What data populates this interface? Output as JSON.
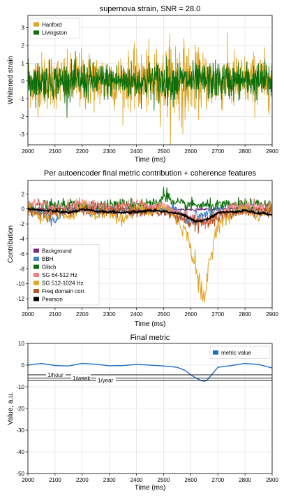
{
  "chart_data": [
    {
      "type": "line",
      "title": "supernova strain, SNR = 28.0",
      "xlabel": "Time (ms)",
      "ylabel": "Whitened strain",
      "xlim": [
        2000,
        2900
      ],
      "ylim": [
        -3.6,
        3.7
      ],
      "xticks": [
        2000,
        2100,
        2200,
        2300,
        2400,
        2500,
        2600,
        2700,
        2800,
        2900
      ],
      "yticks": [
        -3,
        -2,
        -1,
        0,
        1,
        2,
        3
      ],
      "grid": true,
      "legend_position": "top-left",
      "series": [
        {
          "name": "Hanford",
          "color": "#e0a526",
          "x": [
            2000,
            2050,
            2100,
            2150,
            2200,
            2250,
            2300,
            2350,
            2400,
            2450,
            2500,
            2520,
            2540,
            2560,
            2580,
            2600,
            2650,
            2700,
            2750,
            2800,
            2850,
            2900
          ],
          "amplitude": [
            1.6,
            1.8,
            1.7,
            1.6,
            1.9,
            1.7,
            1.8,
            1.6,
            1.8,
            1.9,
            2.0,
            2.4,
            3.3,
            2.8,
            2.3,
            2.0,
            1.8,
            1.7,
            1.9,
            1.6,
            1.8,
            1.6
          ]
        },
        {
          "name": "Livingston",
          "color": "#0b6e0b",
          "x": [
            2000,
            2100,
            2200,
            2300,
            2400,
            2500,
            2600,
            2700,
            2800,
            2900
          ],
          "amplitude": [
            1.2,
            1.1,
            1.2,
            1.1,
            1.2,
            1.3,
            1.1,
            1.2,
            1.1,
            1.2
          ]
        }
      ]
    },
    {
      "type": "line",
      "title": "Per autoencoder final metric contribution + coherence features",
      "xlabel": "Time (ms)",
      "ylabel": "Contribution",
      "xlim": [
        2000,
        2900
      ],
      "ylim": [
        -13.2,
        3.8
      ],
      "xticks": [
        2000,
        2100,
        2200,
        2300,
        2400,
        2500,
        2600,
        2700,
        2800,
        2900
      ],
      "yticks": [
        -12,
        -10,
        -8,
        -6,
        -4,
        -2,
        0,
        2
      ],
      "grid": true,
      "legend_position": "bottom-left",
      "series": [
        {
          "name": "Background",
          "color": "#7e2b7e",
          "x": [
            2000,
            2100,
            2200,
            2300,
            2400,
            2500,
            2600,
            2700,
            2800,
            2900
          ],
          "values": [
            0.1,
            0.0,
            0.1,
            0.0,
            0.1,
            0.0,
            -0.1,
            0.0,
            0.1,
            0.0
          ]
        },
        {
          "name": "BBH",
          "color": "#3f86c8",
          "x": [
            2000,
            2050,
            2100,
            2150,
            2200,
            2250,
            2300,
            2350,
            2400,
            2450,
            2500,
            2550,
            2600,
            2650,
            2700,
            2750,
            2800,
            2850,
            2900
          ],
          "values": [
            0.2,
            -0.5,
            -1.6,
            0.0,
            0.2,
            -0.6,
            0.1,
            -0.3,
            0.2,
            0.0,
            0.1,
            -0.4,
            -1.2,
            -0.8,
            0.0,
            -0.3,
            0.2,
            -0.6,
            0.0
          ]
        },
        {
          "name": "Glitch",
          "color": "#0b6e0b",
          "x": [
            2000,
            2100,
            2200,
            2300,
            2400,
            2480,
            2500,
            2510,
            2520,
            2530,
            2600,
            2700,
            2800,
            2900
          ],
          "values": [
            0.5,
            0.4,
            0.6,
            0.5,
            0.7,
            0.8,
            1.9,
            2.2,
            1.5,
            0.7,
            0.5,
            0.4,
            0.6,
            0.5
          ]
        },
        {
          "name": "SG 64-512 Hz",
          "color": "#f08080",
          "x": [
            2000,
            2100,
            2200,
            2300,
            2400,
            2500,
            2550,
            2600,
            2650,
            2700,
            2750,
            2800,
            2850,
            2900
          ],
          "values": [
            0.8,
            0.3,
            0.7,
            0.2,
            0.6,
            0.4,
            -0.5,
            -1.0,
            -2.0,
            -0.6,
            0.3,
            0.6,
            0.2,
            0.5
          ]
        },
        {
          "name": "SG 512-1024 Hz",
          "color": "#e0a526",
          "x": [
            2000,
            2050,
            2100,
            2150,
            2200,
            2250,
            2300,
            2350,
            2400,
            2450,
            2500,
            2550,
            2580,
            2600,
            2620,
            2640,
            2650,
            2660,
            2680,
            2700,
            2750,
            2800,
            2850,
            2900
          ],
          "values": [
            0.5,
            -1.5,
            -0.5,
            -1.2,
            0.4,
            -1.0,
            -0.3,
            -1.5,
            0.2,
            -0.5,
            0.3,
            -1.5,
            -3.0,
            -5.0,
            -8.0,
            -11.5,
            -12.8,
            -9.0,
            -5.0,
            -2.0,
            -0.8,
            0.3,
            -1.2,
            0.4
          ]
        },
        {
          "name": "Freq domain corr.",
          "color": "#b5572a",
          "x": [
            2000,
            2100,
            2200,
            2300,
            2400,
            2500,
            2550,
            2600,
            2650,
            2700,
            2750,
            2800,
            2900
          ],
          "values": [
            -0.3,
            -0.5,
            -0.2,
            -0.4,
            -0.3,
            -0.5,
            -1.0,
            -1.8,
            -2.0,
            -1.2,
            -0.6,
            -0.4,
            -0.3
          ]
        },
        {
          "name": "Pearson",
          "color": "#000000",
          "x": [
            2000,
            2050,
            2100,
            2150,
            2200,
            2250,
            2300,
            2350,
            2400,
            2450,
            2500,
            2550,
            2580,
            2600,
            2620,
            2650,
            2680,
            2700,
            2750,
            2800,
            2850,
            2900
          ],
          "values": [
            0.0,
            -0.2,
            -0.3,
            -0.5,
            -0.1,
            -0.3,
            -0.4,
            -0.5,
            -0.4,
            -0.2,
            -0.3,
            -0.6,
            -0.9,
            -1.4,
            -1.6,
            -1.5,
            -1.0,
            -0.5,
            -0.4,
            -0.2,
            -0.6,
            -0.7
          ]
        }
      ]
    },
    {
      "type": "line",
      "title": "Final metric",
      "xlabel": "Time (ms)",
      "ylabel": "Value, a.u.",
      "xlim": [
        2000,
        2900
      ],
      "ylim": [
        -50,
        10
      ],
      "xticks": [
        2000,
        2100,
        2200,
        2300,
        2400,
        2500,
        2600,
        2700,
        2800,
        2900
      ],
      "yticks": [
        -50,
        -40,
        -30,
        -20,
        -10,
        0,
        10
      ],
      "grid": true,
      "legend_position": "top-right",
      "series": [
        {
          "name": "metric value",
          "color": "#1f6fc1",
          "x": [
            2000,
            2050,
            2100,
            2150,
            2200,
            2250,
            2300,
            2350,
            2400,
            2450,
            2500,
            2550,
            2580,
            2600,
            2620,
            2640,
            2650,
            2660,
            2680,
            2700,
            2750,
            2800,
            2850,
            2900
          ],
          "values": [
            0.0,
            0.8,
            -0.2,
            -0.4,
            0.8,
            0.4,
            -0.3,
            -0.2,
            0.3,
            0.0,
            -0.4,
            -1.0,
            -2.5,
            -4.5,
            -6.0,
            -7.2,
            -7.5,
            -7.0,
            -4.0,
            -1.0,
            -0.2,
            0.8,
            0.3,
            -1.3
          ]
        }
      ],
      "thresholds": [
        {
          "label": "1/hour",
          "value": -4.5
        },
        {
          "label": "1/week",
          "value": -6.0
        },
        {
          "label": "1/year",
          "value": -7.0
        }
      ]
    }
  ]
}
